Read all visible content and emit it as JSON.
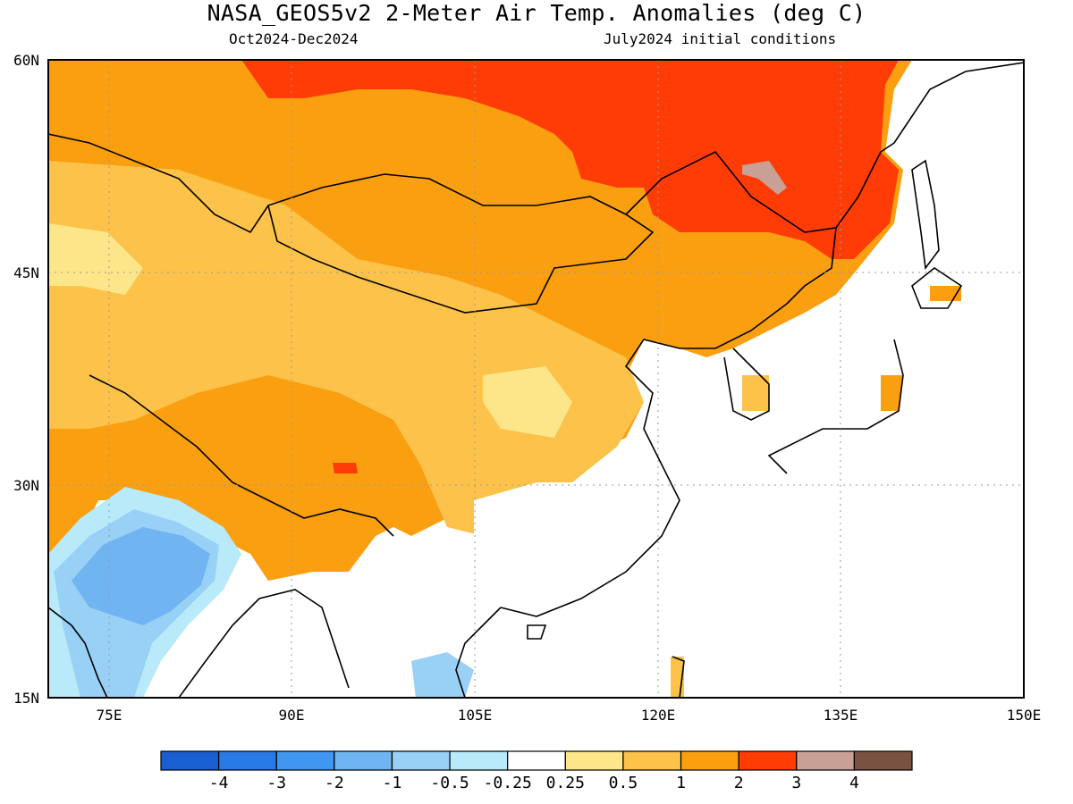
{
  "title": "NASA_GEOS5v2 2-Meter Air Temp. Anomalies (deg C)",
  "subtitle_left": "Oct2024-Dec2024",
  "subtitle_right": "July2024 initial conditions",
  "map": {
    "lon_range": [
      70,
      150
    ],
    "lat_range": [
      15,
      60
    ],
    "x_ticks": [
      "75E",
      "90E",
      "105E",
      "120E",
      "135E",
      "150E"
    ],
    "y_ticks": [
      "15N",
      "30N",
      "45N",
      "60N"
    ]
  },
  "colorbar": {
    "labels": [
      "-4",
      "-3",
      "-2",
      "-1",
      "-0.5",
      "-0.25",
      "0.25",
      "0.5",
      "1",
      "2",
      "3",
      "4"
    ],
    "colors": [
      "#1a5fd0",
      "#2a7ae6",
      "#4196ef",
      "#70b4f2",
      "#98d0f6",
      "#b8eafa",
      "#ffffff",
      "#fde68a",
      "#fcc24a",
      "#fa9f10",
      "#ff3c06",
      "#c8a096",
      "#7a5242"
    ]
  },
  "palette": {
    "white": "#ffffff",
    "lightyellow": "#fde68a",
    "lightorange": "#fcc24a",
    "orange": "#fa9f10",
    "red": "#ff3c06",
    "gray": "#c8a096",
    "lightblue": "#98d0f6",
    "blue": "#70b4f2",
    "paleblue": "#b8eafa"
  }
}
